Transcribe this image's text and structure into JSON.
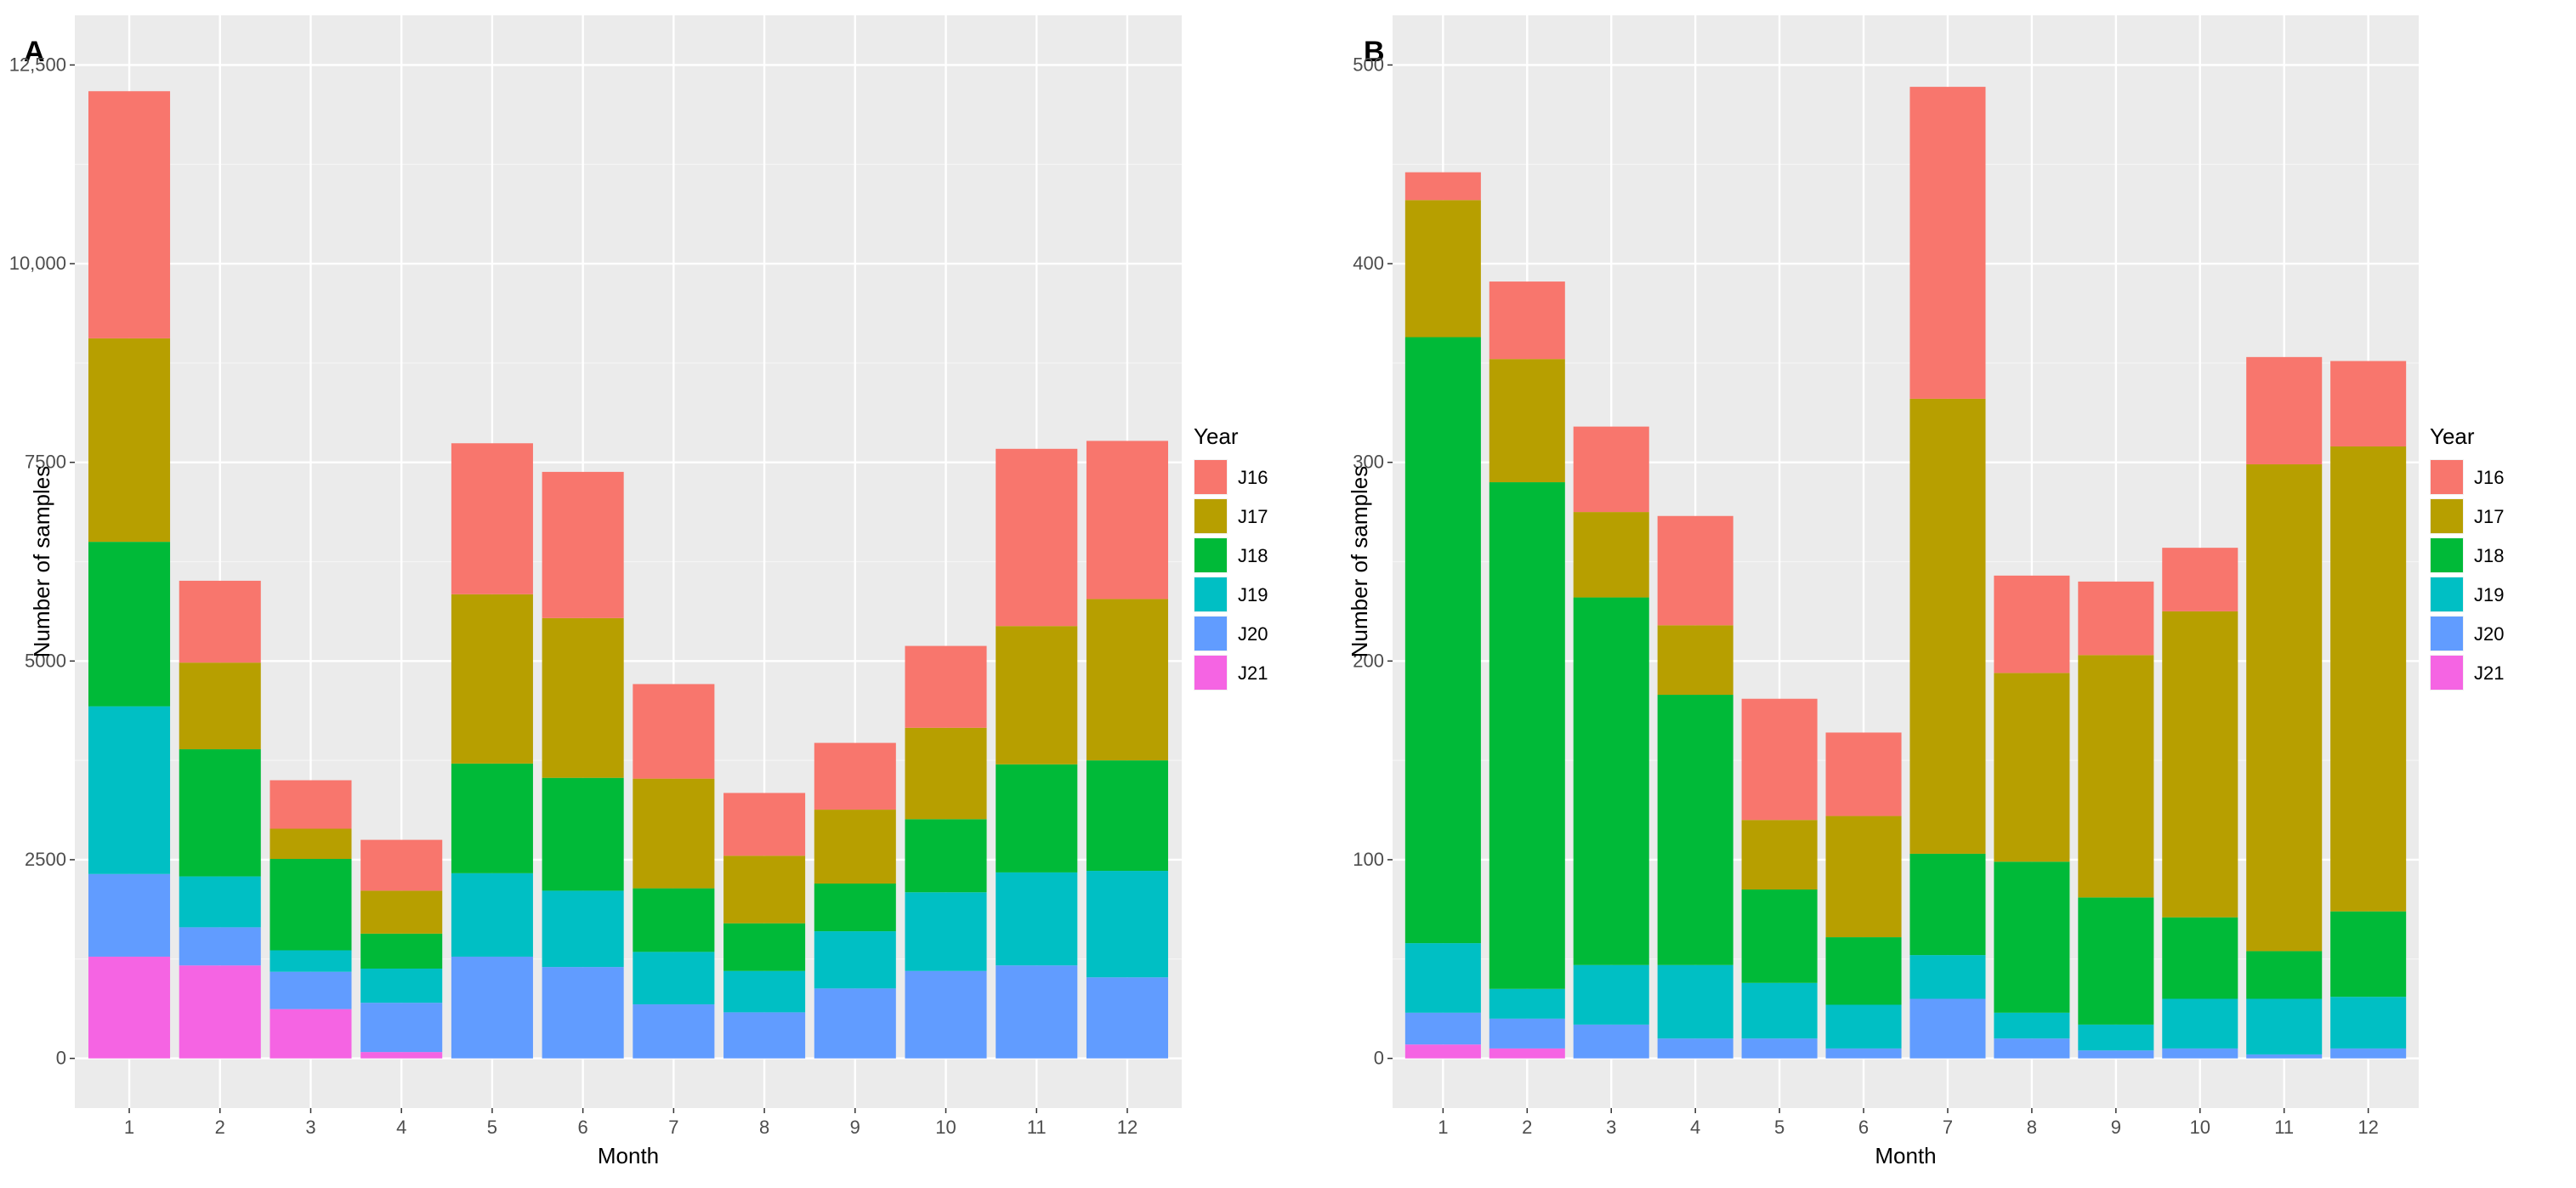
{
  "chart_data": [
    {
      "panel_label": "A",
      "type": "bar",
      "stacked": true,
      "xlabel": "Month",
      "ylabel": "Number of samples",
      "categories": [
        "1",
        "2",
        "3",
        "4",
        "5",
        "6",
        "7",
        "8",
        "9",
        "10",
        "11",
        "12"
      ],
      "ylim": [
        0,
        12500
      ],
      "yticks": [
        0,
        2500,
        5000,
        7500,
        10000,
        12500
      ],
      "ytick_labels": [
        "0",
        "2500",
        "5000",
        "7500",
        "10,000",
        "12,500"
      ],
      "legend_title": "Year",
      "legend_position": "right",
      "series": [
        {
          "name": "J21",
          "color": "#F564E3",
          "values": [
            1280,
            1170,
            620,
            80,
            0,
            0,
            0,
            0,
            0,
            0,
            0,
            0
          ]
        },
        {
          "name": "J20",
          "color": "#619CFF",
          "values": [
            1040,
            480,
            470,
            620,
            1280,
            1150,
            680,
            580,
            880,
            1100,
            1170,
            1020
          ]
        },
        {
          "name": "J19",
          "color": "#00BFC4",
          "values": [
            2110,
            640,
            270,
            430,
            1050,
            960,
            660,
            520,
            720,
            990,
            1170,
            1340
          ]
        },
        {
          "name": "J18",
          "color": "#00BA38",
          "values": [
            2070,
            1600,
            1150,
            440,
            1380,
            1420,
            800,
            600,
            600,
            920,
            1360,
            1390
          ]
        },
        {
          "name": "J17",
          "color": "#B79F00",
          "values": [
            2560,
            1090,
            380,
            540,
            2130,
            2010,
            1380,
            850,
            930,
            1150,
            1740,
            2030
          ]
        },
        {
          "name": "J16",
          "color": "#F8766D",
          "values": [
            3110,
            1030,
            610,
            640,
            1900,
            1840,
            1190,
            790,
            840,
            1030,
            2230,
            1990
          ]
        }
      ]
    },
    {
      "panel_label": "B",
      "type": "bar",
      "stacked": true,
      "xlabel": "Month",
      "ylabel": "Number of samples",
      "categories": [
        "1",
        "2",
        "3",
        "4",
        "5",
        "6",
        "7",
        "8",
        "9",
        "10",
        "11",
        "12"
      ],
      "ylim": [
        0,
        500
      ],
      "yticks": [
        0,
        100,
        200,
        300,
        400,
        500
      ],
      "ytick_labels": [
        "0",
        "100",
        "200",
        "300",
        "400",
        "500"
      ],
      "legend_title": "Year",
      "legend_position": "right",
      "series": [
        {
          "name": "J21",
          "color": "#F564E3",
          "values": [
            7,
            5,
            0,
            0,
            0,
            0,
            0,
            0,
            0,
            0,
            0,
            0
          ]
        },
        {
          "name": "J20",
          "color": "#619CFF",
          "values": [
            16,
            15,
            17,
            10,
            10,
            5,
            30,
            10,
            4,
            5,
            2,
            5
          ]
        },
        {
          "name": "J19",
          "color": "#00BFC4",
          "values": [
            35,
            15,
            30,
            37,
            28,
            22,
            22,
            13,
            13,
            25,
            28,
            26
          ]
        },
        {
          "name": "J18",
          "color": "#00BA38",
          "values": [
            305,
            255,
            185,
            136,
            47,
            34,
            51,
            76,
            64,
            41,
            24,
            43
          ]
        },
        {
          "name": "J17",
          "color": "#B79F00",
          "values": [
            69,
            62,
            43,
            35,
            35,
            61,
            229,
            95,
            122,
            154,
            245,
            234
          ]
        },
        {
          "name": "J16",
          "color": "#F8766D",
          "values": [
            14,
            39,
            43,
            55,
            61,
            42,
            157,
            49,
            37,
            32,
            54,
            43
          ]
        }
      ]
    }
  ]
}
